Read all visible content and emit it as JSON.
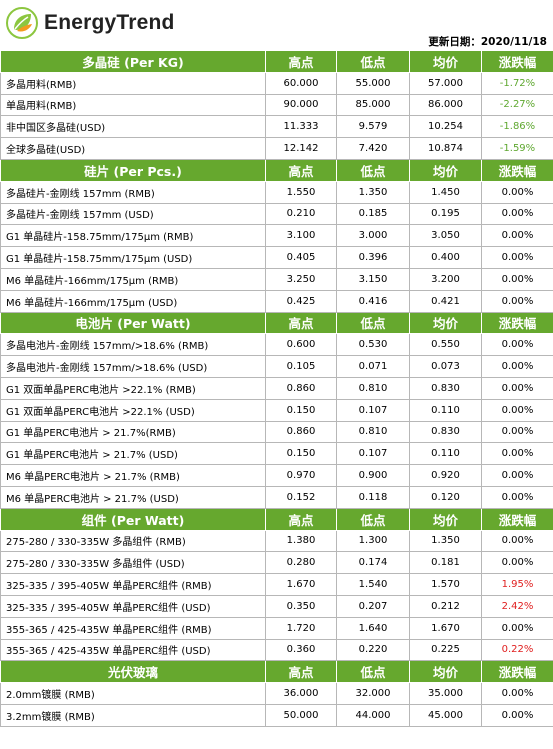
{
  "brand": "EnergyTrend",
  "update_label": "更新日期：",
  "update_date": "2020/11/18",
  "sections": [
    {
      "title": "多晶硅 (Per KG)",
      "headers": [
        "高点",
        "低点",
        "均价",
        "涨跌幅"
      ],
      "rows": [
        {
          "name": "多晶用料(RMB)",
          "high": "60.000",
          "low": "55.000",
          "avg": "57.000",
          "change": "-1.72%",
          "dir": "neg"
        },
        {
          "name": "单晶用料(RMB)",
          "high": "90.000",
          "low": "85.000",
          "avg": "86.000",
          "change": "-2.27%",
          "dir": "neg"
        },
        {
          "name": "非中国区多晶硅(USD)",
          "high": "11.333",
          "low": "9.579",
          "avg": "10.254",
          "change": "-1.86%",
          "dir": "neg"
        },
        {
          "name": "全球多晶硅(USD)",
          "high": "12.142",
          "low": "7.420",
          "avg": "10.874",
          "change": "-1.59%",
          "dir": "neg"
        }
      ]
    },
    {
      "title": "硅片 (Per Pcs.)",
      "headers": [
        "高点",
        "低点",
        "均价",
        "涨跌幅"
      ],
      "rows": [
        {
          "name": "多晶硅片-金刚线 157mm (RMB)",
          "high": "1.550",
          "low": "1.350",
          "avg": "1.450",
          "change": "0.00%",
          "dir": "zero"
        },
        {
          "name": "多晶硅片-金刚线 157mm (USD)",
          "high": "0.210",
          "low": "0.185",
          "avg": "0.195",
          "change": "0.00%",
          "dir": "zero"
        },
        {
          "name": "G1 单晶硅片-158.75mm/175µm (RMB)",
          "high": "3.100",
          "low": "3.000",
          "avg": "3.050",
          "change": "0.00%",
          "dir": "zero"
        },
        {
          "name": "G1 单晶硅片-158.75mm/175µm (USD)",
          "high": "0.405",
          "low": "0.396",
          "avg": "0.400",
          "change": "0.00%",
          "dir": "zero"
        },
        {
          "name": "M6 单晶硅片-166mm/175µm (RMB)",
          "high": "3.250",
          "low": "3.150",
          "avg": "3.200",
          "change": "0.00%",
          "dir": "zero"
        },
        {
          "name": "M6 单晶硅片-166mm/175µm (USD)",
          "high": "0.425",
          "low": "0.416",
          "avg": "0.421",
          "change": "0.00%",
          "dir": "zero"
        }
      ]
    },
    {
      "title": "电池片 (Per Watt)",
      "headers": [
        "高点",
        "低点",
        "均价",
        "涨跌幅"
      ],
      "rows": [
        {
          "name": "多晶电池片-金刚线 157mm/>18.6% (RMB)",
          "high": "0.600",
          "low": "0.530",
          "avg": "0.550",
          "change": "0.00%",
          "dir": "zero"
        },
        {
          "name": "多晶电池片-金刚线 157mm/>18.6% (USD)",
          "high": "0.105",
          "low": "0.071",
          "avg": "0.073",
          "change": "0.00%",
          "dir": "zero"
        },
        {
          "name": "G1 双面单晶PERC电池片 >22.1% (RMB)",
          "high": "0.860",
          "low": "0.810",
          "avg": "0.830",
          "change": "0.00%",
          "dir": "zero"
        },
        {
          "name": "G1 双面单晶PERC电池片 >22.1% (USD)",
          "high": "0.150",
          "low": "0.107",
          "avg": "0.110",
          "change": "0.00%",
          "dir": "zero"
        },
        {
          "name": "G1 单晶PERC电池片  > 21.7%(RMB)",
          "high": "0.860",
          "low": "0.810",
          "avg": "0.830",
          "change": "0.00%",
          "dir": "zero"
        },
        {
          "name": "G1 单晶PERC电池片  > 21.7%  (USD)",
          "high": "0.150",
          "low": "0.107",
          "avg": "0.110",
          "change": "0.00%",
          "dir": "zero"
        },
        {
          "name": "M6 单晶PERC电池片 > 21.7% (RMB)",
          "high": "0.970",
          "low": "0.900",
          "avg": "0.920",
          "change": "0.00%",
          "dir": "zero"
        },
        {
          "name": "M6 单晶PERC电池片 > 21.7% (USD)",
          "high": "0.152",
          "low": "0.118",
          "avg": "0.120",
          "change": "0.00%",
          "dir": "zero"
        }
      ]
    },
    {
      "title": "组件 (Per Watt)",
      "headers": [
        "高点",
        "低点",
        "均价",
        "涨跌幅"
      ],
      "rows": [
        {
          "name": "275-280 / 330-335W 多晶组件 (RMB)",
          "high": "1.380",
          "low": "1.300",
          "avg": "1.350",
          "change": "0.00%",
          "dir": "zero"
        },
        {
          "name": "275-280 / 330-335W 多晶组件 (USD)",
          "high": "0.280",
          "low": "0.174",
          "avg": "0.181",
          "change": "0.00%",
          "dir": "zero"
        },
        {
          "name": "325-335 / 395-405W 单晶PERC组件 (RMB)",
          "high": "1.670",
          "low": "1.540",
          "avg": "1.570",
          "change": "1.95%",
          "dir": "pos"
        },
        {
          "name": "325-335 / 395-405W 单晶PERC组件 (USD)",
          "high": "0.350",
          "low": "0.207",
          "avg": "0.212",
          "change": "2.42%",
          "dir": "pos"
        },
        {
          "name": "355-365 / 425-435W 单晶PERC组件 (RMB)",
          "high": "1.720",
          "low": "1.640",
          "avg": "1.670",
          "change": "0.00%",
          "dir": "zero"
        },
        {
          "name": "355-365 / 425-435W 单晶PERC组件 (USD)",
          "high": "0.360",
          "low": "0.220",
          "avg": "0.225",
          "change": "0.22%",
          "dir": "pos"
        }
      ]
    },
    {
      "title": "光伏玻璃",
      "headers": [
        "高点",
        "低点",
        "均价",
        "涨跌幅"
      ],
      "rows": [
        {
          "name": "2.0mm镀膜 (RMB)",
          "high": "36.000",
          "low": "32.000",
          "avg": "35.000",
          "change": "0.00%",
          "dir": "zero"
        },
        {
          "name": "3.2mm镀膜 (RMB)",
          "high": "50.000",
          "low": "44.000",
          "avg": "45.000",
          "change": "0.00%",
          "dir": "zero"
        }
      ]
    }
  ],
  "colors": {
    "header_green": "#66a82e",
    "negative": "#5fa830",
    "positive": "#e02020"
  },
  "icons": {
    "logo": "energytrend-leaf-logo"
  }
}
